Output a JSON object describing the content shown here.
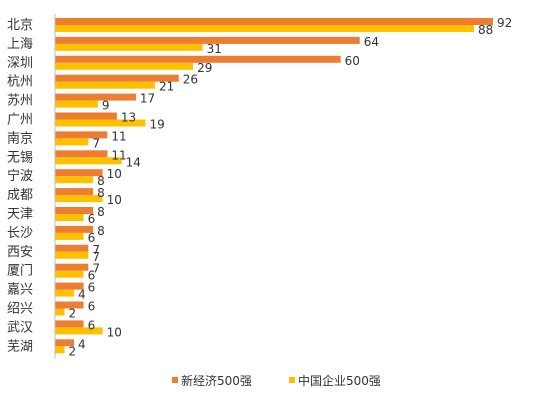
{
  "chart_data": {
    "type": "bar",
    "orientation": "horizontal",
    "title": "",
    "xlabel": "",
    "ylabel": "",
    "xlim": [
      0,
      92
    ],
    "grid": false,
    "legend_position": "bottom",
    "categories": [
      "北京",
      "上海",
      "深圳",
      "杭州",
      "苏州",
      "广州",
      "南京",
      "无锡",
      "宁波",
      "成都",
      "天津",
      "长沙",
      "西安",
      "厦门",
      "嘉兴",
      "绍兴",
      "武汉",
      "芜湖"
    ],
    "series": [
      {
        "name": "新经济500强",
        "color": "#ED7D31",
        "values": [
          92,
          64,
          60,
          26,
          17,
          13,
          11,
          11,
          10,
          8,
          8,
          8,
          7,
          7,
          6,
          6,
          6,
          4
        ]
      },
      {
        "name": "中国企业500强",
        "color": "#FFC000",
        "values": [
          88,
          31,
          29,
          21,
          9,
          19,
          7,
          14,
          8,
          10,
          6,
          6,
          7,
          6,
          4,
          2,
          10,
          2
        ]
      }
    ]
  }
}
